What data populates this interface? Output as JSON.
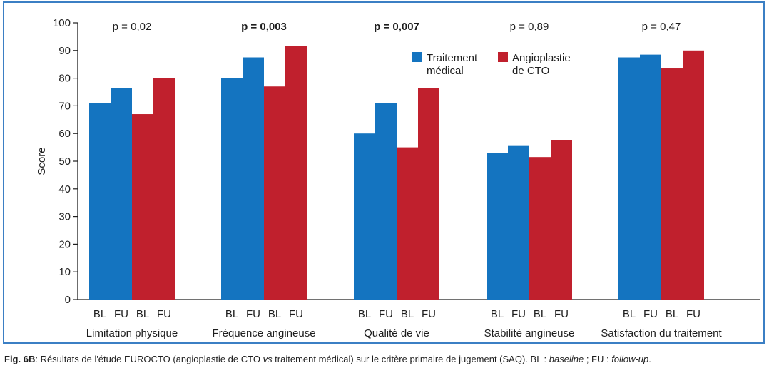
{
  "chart_data": {
    "type": "bar",
    "ylabel": "Score",
    "ylim": [
      0,
      100
    ],
    "yticks": [
      "0",
      "10",
      "20",
      "30",
      "40",
      "50",
      "60",
      "70",
      "80",
      "90",
      "100"
    ],
    "categories": [
      "Limitation physique",
      "Fréquence angineuse",
      "Qualité de vie",
      "Stabilité angineuse",
      "Satisfaction du traitement"
    ],
    "sub_labels": [
      "BL",
      "FU",
      "BL",
      "FU"
    ],
    "p_values": [
      {
        "text": "p = 0,02",
        "bold": false
      },
      {
        "text": "p = 0,003",
        "bold": true
      },
      {
        "text": "p = 0,007",
        "bold": true
      },
      {
        "text": "p = 0,89",
        "bold": false
      },
      {
        "text": "p = 0,47",
        "bold": false
      }
    ],
    "series": [
      {
        "name": "Traitement médical",
        "name_lines": [
          "Traitement",
          "médical"
        ],
        "color": "#1474c0",
        "bl": [
          71,
          80,
          60,
          53,
          87.5
        ],
        "fu": [
          76.5,
          87.5,
          71,
          55.5,
          88.5
        ]
      },
      {
        "name": "Angioplastie de CTO",
        "name_lines": [
          "Angioplastie",
          "de CTO"
        ],
        "color": "#c0202d",
        "bl": [
          67,
          77,
          55,
          51.5,
          83.5
        ],
        "fu": [
          80,
          91.5,
          76.5,
          57.5,
          90
        ]
      }
    ],
    "legend_position": "top-center",
    "grid": false
  },
  "caption": {
    "label": "Fig. 6B",
    "text": ": Résultats de l'étude EUROCTO (angioplastie de CTO ",
    "vs": "vs",
    "text2": " traitement médical) sur le critère primaire de jugement (SAQ). BL : ",
    "baseline": "baseline",
    "text3": " ; FU : ",
    "followup": "follow-up",
    "text4": "."
  }
}
